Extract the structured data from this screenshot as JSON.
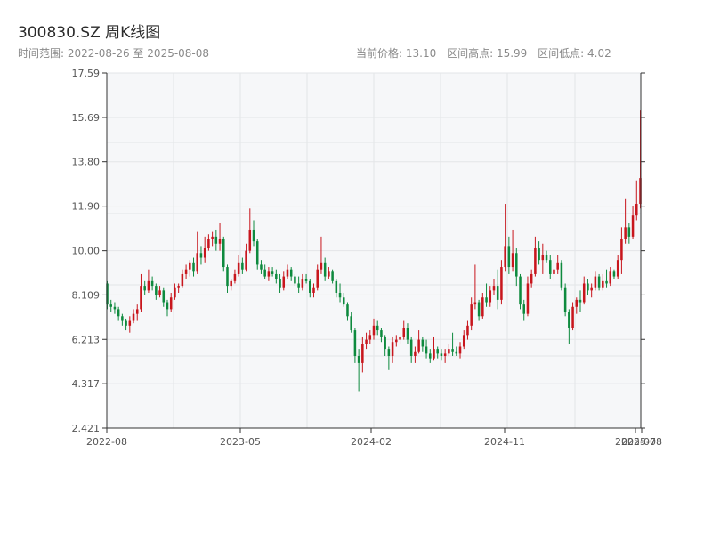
{
  "header": {
    "title": "300830.SZ 周K线图",
    "range_label": "时间范围:",
    "range_start": "2022-08-26",
    "range_sep": "至",
    "range_end": "2025-08-08",
    "price_label": "当前价格:",
    "price_value": "13.10",
    "high_label": "区间高点:",
    "high_value": "15.99",
    "low_label": "区间低点:",
    "low_value": "4.02"
  },
  "colors": {
    "up": "#c8161d",
    "down": "#0e8a3e",
    "plot_bg": "#f6f7f9",
    "grid": "#e3e5e8",
    "axis": "#333333"
  },
  "chart_data": {
    "type": "candlestick",
    "x_type": "weekly",
    "ylim": [
      2.421,
      17.59
    ],
    "yticks": [
      "2.421",
      "4.317",
      "6.213",
      "8.109",
      "10.00",
      "11.90",
      "13.80",
      "15.69",
      "17.59"
    ],
    "xticks": [
      "2022-08",
      "2023-05",
      "2024-02",
      "2024-11",
      "2025-07",
      "2025-08"
    ],
    "series": [
      {
        "ohlc": [
          [
            8.6,
            8.7,
            7.5,
            7.7
          ],
          [
            7.7,
            7.9,
            7.4,
            7.6
          ],
          [
            7.6,
            7.8,
            7.3,
            7.5
          ],
          [
            7.5,
            7.6,
            7.0,
            7.2
          ],
          [
            7.2,
            7.3,
            6.8,
            7.0
          ],
          [
            7.0,
            7.1,
            6.6,
            6.8
          ],
          [
            6.8,
            7.2,
            6.5,
            7.0
          ],
          [
            7.0,
            7.5,
            6.9,
            7.3
          ],
          [
            7.3,
            7.7,
            7.0,
            7.5
          ],
          [
            7.5,
            9.0,
            7.4,
            8.5
          ],
          [
            8.5,
            8.7,
            8.1,
            8.3
          ],
          [
            8.3,
            9.2,
            8.2,
            8.7
          ],
          [
            8.7,
            8.9,
            8.3,
            8.5
          ],
          [
            8.5,
            8.6,
            7.9,
            8.1
          ],
          [
            8.1,
            8.5,
            8.0,
            8.3
          ],
          [
            8.3,
            8.4,
            7.6,
            7.8
          ],
          [
            7.8,
            7.9,
            7.2,
            7.5
          ],
          [
            7.5,
            8.2,
            7.4,
            8.0
          ],
          [
            8.0,
            8.6,
            7.9,
            8.4
          ],
          [
            8.4,
            8.6,
            8.2,
            8.5
          ],
          [
            8.5,
            9.2,
            8.4,
            9.0
          ],
          [
            9.0,
            9.4,
            8.8,
            9.2
          ],
          [
            9.2,
            9.6,
            8.9,
            9.5
          ],
          [
            9.5,
            9.7,
            8.9,
            9.1
          ],
          [
            9.1,
            10.8,
            9.0,
            9.9
          ],
          [
            9.9,
            10.2,
            9.4,
            9.7
          ],
          [
            9.7,
            10.6,
            9.5,
            10.1
          ],
          [
            10.1,
            10.7,
            10.0,
            10.5
          ],
          [
            10.5,
            10.8,
            10.2,
            10.6
          ],
          [
            10.6,
            10.9,
            10.0,
            10.3
          ],
          [
            10.3,
            11.2,
            10.0,
            10.5
          ],
          [
            10.5,
            10.6,
            9.1,
            9.3
          ],
          [
            9.3,
            9.4,
            8.2,
            8.5
          ],
          [
            8.5,
            8.8,
            8.3,
            8.7
          ],
          [
            8.7,
            9.2,
            8.6,
            9.0
          ],
          [
            9.0,
            9.8,
            8.9,
            9.5
          ],
          [
            9.5,
            9.7,
            9.0,
            9.2
          ],
          [
            9.2,
            10.3,
            9.1,
            10.0
          ],
          [
            10.0,
            11.8,
            9.9,
            10.9
          ],
          [
            10.9,
            11.3,
            10.2,
            10.4
          ],
          [
            10.4,
            10.5,
            9.2,
            9.4
          ],
          [
            9.4,
            9.6,
            9.0,
            9.2
          ],
          [
            9.2,
            9.4,
            8.8,
            8.9
          ],
          [
            8.9,
            9.3,
            8.7,
            9.1
          ],
          [
            9.1,
            9.3,
            8.9,
            9.0
          ],
          [
            9.0,
            9.2,
            8.6,
            8.8
          ],
          [
            8.8,
            9.0,
            8.2,
            8.4
          ],
          [
            8.4,
            9.1,
            8.3,
            8.9
          ],
          [
            8.9,
            9.4,
            8.8,
            9.2
          ],
          [
            9.2,
            9.3,
            8.7,
            8.9
          ],
          [
            8.9,
            9.0,
            8.5,
            8.6
          ],
          [
            8.6,
            8.9,
            8.2,
            8.4
          ],
          [
            8.4,
            9.0,
            8.3,
            8.8
          ],
          [
            8.8,
            9.0,
            8.6,
            8.7
          ],
          [
            8.7,
            8.8,
            8.0,
            8.2
          ],
          [
            8.2,
            8.6,
            8.0,
            8.4
          ],
          [
            8.4,
            9.4,
            8.3,
            9.2
          ],
          [
            9.2,
            10.6,
            9.0,
            9.5
          ],
          [
            9.5,
            9.7,
            8.7,
            8.9
          ],
          [
            8.9,
            9.3,
            8.8,
            9.1
          ],
          [
            9.1,
            9.2,
            8.6,
            8.7
          ],
          [
            8.7,
            8.8,
            8.0,
            8.2
          ],
          [
            8.2,
            8.6,
            7.8,
            8.0
          ],
          [
            8.0,
            8.2,
            7.6,
            7.7
          ],
          [
            7.7,
            7.8,
            7.0,
            7.2
          ],
          [
            7.2,
            7.4,
            6.5,
            6.6
          ],
          [
            6.6,
            6.7,
            5.2,
            5.5
          ],
          [
            5.5,
            5.8,
            4.0,
            5.2
          ],
          [
            5.2,
            6.3,
            4.8,
            6.0
          ],
          [
            6.0,
            6.5,
            5.8,
            6.2
          ],
          [
            6.2,
            6.6,
            6.0,
            6.4
          ],
          [
            6.4,
            7.1,
            6.2,
            6.8
          ],
          [
            6.8,
            7.0,
            6.4,
            6.6
          ],
          [
            6.6,
            6.7,
            6.1,
            6.3
          ],
          [
            6.3,
            6.4,
            5.5,
            5.8
          ],
          [
            5.8,
            5.9,
            4.9,
            5.5
          ],
          [
            5.5,
            6.3,
            5.2,
            6.1
          ],
          [
            6.1,
            6.4,
            5.9,
            6.2
          ],
          [
            6.2,
            6.5,
            6.0,
            6.3
          ],
          [
            6.3,
            7.0,
            6.2,
            6.7
          ],
          [
            6.7,
            6.9,
            6.0,
            6.2
          ],
          [
            6.2,
            6.3,
            5.2,
            5.5
          ],
          [
            5.5,
            5.9,
            5.2,
            5.7
          ],
          [
            5.7,
            6.6,
            5.6,
            6.2
          ],
          [
            6.2,
            6.3,
            5.7,
            5.9
          ],
          [
            5.9,
            6.2,
            5.4,
            5.6
          ],
          [
            5.6,
            5.8,
            5.2,
            5.4
          ],
          [
            5.4,
            6.3,
            5.3,
            5.8
          ],
          [
            5.8,
            5.9,
            5.4,
            5.6
          ],
          [
            5.6,
            5.8,
            5.3,
            5.5
          ],
          [
            5.5,
            5.8,
            5.2,
            5.6
          ],
          [
            5.6,
            6.0,
            5.5,
            5.8
          ],
          [
            5.8,
            6.5,
            5.5,
            5.7
          ],
          [
            5.7,
            5.9,
            5.5,
            5.6
          ],
          [
            5.6,
            6.1,
            5.4,
            5.9
          ],
          [
            5.9,
            6.6,
            5.8,
            6.4
          ],
          [
            6.4,
            7.0,
            6.2,
            6.8
          ],
          [
            6.8,
            8.0,
            6.6,
            7.7
          ],
          [
            7.7,
            9.4,
            7.5,
            7.8
          ],
          [
            7.8,
            7.9,
            7.0,
            7.2
          ],
          [
            7.2,
            8.2,
            7.1,
            8.0
          ],
          [
            8.0,
            8.6,
            7.6,
            7.8
          ],
          [
            7.8,
            8.5,
            7.6,
            8.3
          ],
          [
            8.3,
            8.8,
            8.1,
            8.5
          ],
          [
            8.5,
            9.2,
            7.5,
            7.9
          ],
          [
            7.9,
            9.6,
            7.7,
            9.3
          ],
          [
            9.3,
            12.0,
            9.1,
            10.2
          ],
          [
            10.2,
            10.6,
            9.0,
            9.3
          ],
          [
            9.3,
            10.9,
            9.1,
            9.9
          ],
          [
            9.9,
            10.1,
            8.5,
            8.9
          ],
          [
            8.9,
            9.0,
            7.5,
            7.7
          ],
          [
            7.7,
            7.9,
            7.0,
            7.3
          ],
          [
            7.3,
            8.9,
            7.2,
            8.6
          ],
          [
            8.6,
            9.2,
            8.4,
            9.0
          ],
          [
            9.0,
            10.6,
            8.9,
            10.1
          ],
          [
            10.1,
            10.4,
            9.4,
            9.6
          ],
          [
            9.6,
            10.3,
            9.0,
            9.8
          ],
          [
            9.8,
            10.0,
            9.5,
            9.6
          ],
          [
            9.6,
            9.8,
            8.8,
            9.0
          ],
          [
            9.0,
            9.9,
            8.7,
            9.2
          ],
          [
            9.2,
            9.8,
            9.0,
            9.5
          ],
          [
            9.5,
            9.6,
            8.3,
            8.4
          ],
          [
            8.4,
            8.6,
            7.2,
            7.4
          ],
          [
            7.4,
            7.5,
            6.0,
            6.7
          ],
          [
            6.7,
            7.8,
            6.6,
            7.6
          ],
          [
            7.6,
            8.0,
            7.3,
            7.9
          ],
          [
            7.9,
            8.3,
            7.4,
            7.8
          ],
          [
            7.8,
            8.9,
            7.7,
            8.6
          ],
          [
            8.6,
            8.8,
            8.1,
            8.3
          ],
          [
            8.3,
            8.6,
            8.0,
            8.4
          ],
          [
            8.4,
            9.1,
            8.3,
            8.9
          ],
          [
            8.9,
            9.0,
            8.3,
            8.4
          ],
          [
            8.4,
            9.0,
            8.3,
            8.7
          ],
          [
            8.7,
            9.2,
            8.4,
            8.6
          ],
          [
            8.6,
            9.3,
            8.5,
            9.1
          ],
          [
            9.1,
            9.2,
            8.8,
            8.9
          ],
          [
            8.9,
            9.8,
            8.8,
            9.6
          ],
          [
            9.6,
            11.0,
            9.0,
            10.5
          ],
          [
            10.5,
            12.2,
            10.3,
            11.0
          ],
          [
            11.0,
            11.2,
            10.3,
            10.6
          ],
          [
            10.6,
            11.9,
            10.5,
            11.5
          ],
          [
            11.5,
            13.0,
            11.3,
            12.0
          ],
          [
            12.0,
            15.99,
            11.8,
            13.1
          ]
        ]
      }
    ]
  }
}
